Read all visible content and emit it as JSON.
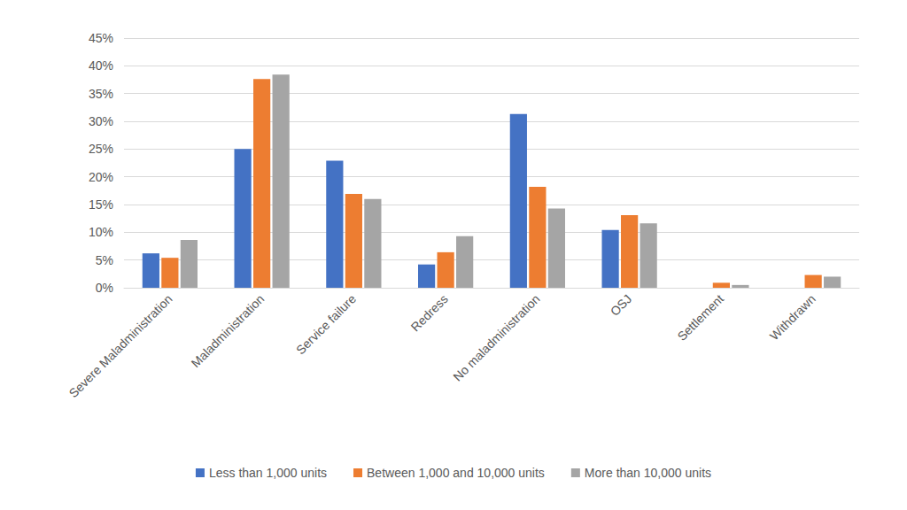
{
  "chart_data": {
    "type": "bar",
    "categories": [
      "Severe Maladministration",
      "Maladministration",
      "Service failure",
      "Redress",
      "No maladministration",
      "OSJ",
      "Settlement",
      "Withdrawn"
    ],
    "series": [
      {
        "name": "Less than 1,000 units",
        "color": "#4472c4",
        "values": [
          6.2,
          25.0,
          22.9,
          4.2,
          31.3,
          10.4,
          0,
          0
        ]
      },
      {
        "name": "Between 1,000 and 10,000 units",
        "color": "#ed7d31",
        "values": [
          5.4,
          37.6,
          16.9,
          6.4,
          18.2,
          13.1,
          0.9,
          2.3
        ]
      },
      {
        "name": "More than 10,000 units",
        "color": "#a5a5a5",
        "values": [
          8.6,
          38.4,
          16.0,
          9.3,
          14.3,
          11.6,
          0.5,
          2.0
        ]
      }
    ],
    "ylim": [
      0,
      45
    ],
    "yticks": [
      {
        "value": 0,
        "label": "0%"
      },
      {
        "value": 5,
        "label": "5%"
      },
      {
        "value": 10,
        "label": "10%"
      },
      {
        "value": 15,
        "label": "15%"
      },
      {
        "value": 20,
        "label": "20%"
      },
      {
        "value": 25,
        "label": "25%"
      },
      {
        "value": 30,
        "label": "30%"
      },
      {
        "value": 35,
        "label": "35%"
      },
      {
        "value": 40,
        "label": "40%"
      },
      {
        "value": 45,
        "label": "45%"
      }
    ],
    "grid": true,
    "legend": "bottom"
  }
}
